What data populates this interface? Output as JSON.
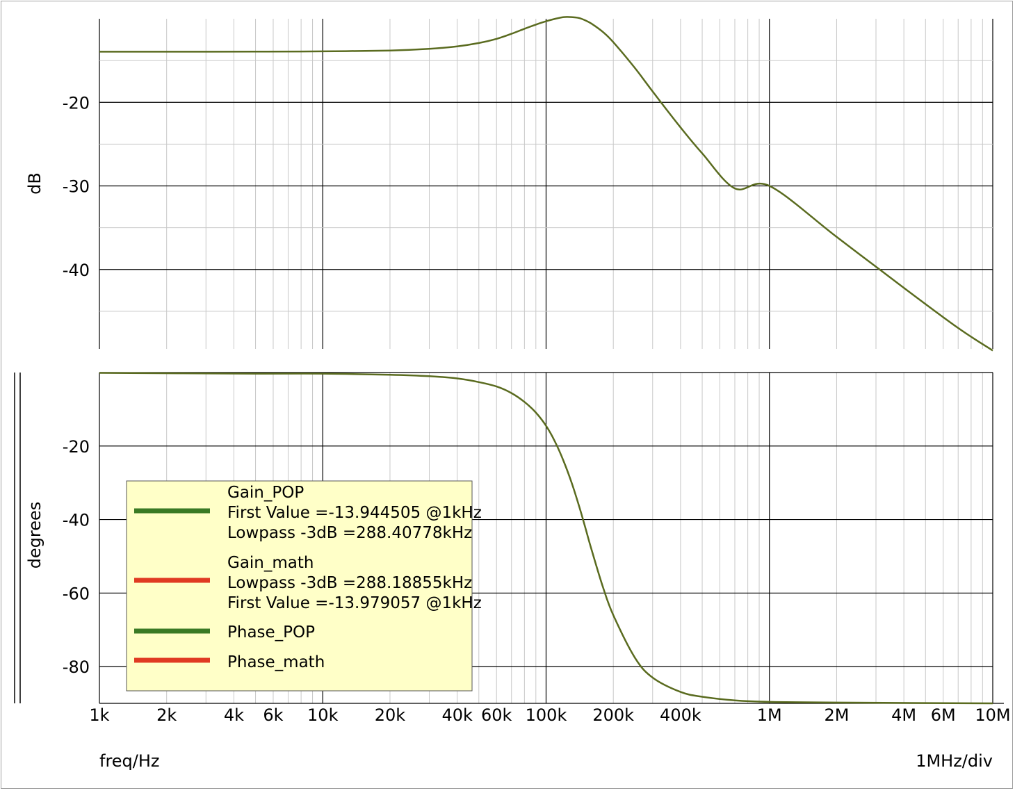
{
  "colors": {
    "trace": "#5a6b1f",
    "legend_bg": "#ffffc8",
    "legend_green": "#3a7a24",
    "legend_red": "#e03a22",
    "major_grid": "#000000",
    "minor_grid": "#c8c8c8"
  },
  "chart_data": [
    {
      "type": "line",
      "panel": "gain",
      "ylabel": "dB",
      "xscale": "log",
      "xlim": [
        1000,
        10000000
      ],
      "ylim": [
        -49.5,
        -10
      ],
      "yticks": [
        {
          "value": -20,
          "label": "-20"
        },
        {
          "value": -30,
          "label": "-30"
        },
        {
          "value": -40,
          "label": "-40"
        }
      ],
      "grid": true,
      "series": [
        {
          "x": [
            1000,
            2000,
            5000,
            10000,
            20000,
            30000,
            40000,
            50000,
            60000,
            70000,
            80000,
            90000,
            100000,
            110000,
            120000,
            130000,
            140000,
            150000,
            160000,
            180000,
            200000,
            250000,
            300000,
            400000,
            500000,
            700000,
            1000000,
            2000000,
            4000000,
            7000000,
            10000000
          ],
          "y": [
            -13.94,
            -13.94,
            -13.93,
            -13.9,
            -13.8,
            -13.6,
            -13.3,
            -12.9,
            -12.4,
            -11.8,
            -11.2,
            -10.7,
            -10.3,
            -10.0,
            -9.8,
            -9.8,
            -9.9,
            -10.2,
            -10.6,
            -11.6,
            -12.8,
            -15.9,
            -18.7,
            -23.0,
            -26.1,
            -30.3,
            -30.0,
            -36.1,
            -42.2,
            -47.0,
            -49.7
          ]
        }
      ]
    },
    {
      "type": "line",
      "panel": "phase",
      "ylabel": "degrees",
      "xscale": "log",
      "xlim": [
        1000,
        10000000
      ],
      "ylim": [
        -90,
        0
      ],
      "yticks": [
        {
          "value": -20,
          "label": "-20"
        },
        {
          "value": -40,
          "label": "-40"
        },
        {
          "value": -60,
          "label": "-60"
        },
        {
          "value": -80,
          "label": "-80"
        }
      ],
      "grid": true,
      "series": [
        {
          "x": [
            1000,
            5000,
            10000,
            20000,
            30000,
            40000,
            50000,
            60000,
            70000,
            80000,
            90000,
            100000,
            110000,
            120000,
            130000,
            140000,
            150000,
            160000,
            180000,
            200000,
            250000,
            300000,
            400000,
            500000,
            700000,
            1000000,
            2000000,
            10000000
          ],
          "y": [
            -0.1,
            -0.3,
            -0.3,
            -0.6,
            -1.0,
            -1.6,
            -2.6,
            -3.8,
            -5.6,
            -8.0,
            -10.9,
            -14.5,
            -19.0,
            -24.2,
            -29.9,
            -36.0,
            -42.3,
            -48.3,
            -58.5,
            -66.0,
            -77.6,
            -83.0,
            -86.9,
            -88.2,
            -89.2,
            -89.6,
            -89.8,
            -90.0
          ]
        }
      ]
    }
  ],
  "xaxis": {
    "ticks": [
      {
        "value": 1000,
        "label": "1k"
      },
      {
        "value": 2000,
        "label": "2k"
      },
      {
        "value": 4000,
        "label": "4k"
      },
      {
        "value": 6000,
        "label": "6k"
      },
      {
        "value": 10000,
        "label": "10k"
      },
      {
        "value": 20000,
        "label": "20k"
      },
      {
        "value": 40000,
        "label": "40k"
      },
      {
        "value": 60000,
        "label": "60k"
      },
      {
        "value": 100000,
        "label": "100k"
      },
      {
        "value": 200000,
        "label": "200k"
      },
      {
        "value": 400000,
        "label": "400k"
      },
      {
        "value": 1000000,
        "label": "1M"
      },
      {
        "value": 2000000,
        "label": "2M"
      },
      {
        "value": 4000000,
        "label": "4M"
      },
      {
        "value": 6000000,
        "label": "6M"
      },
      {
        "value": 10000000,
        "label": "10M"
      }
    ],
    "xlabel": "freq/Hz",
    "scale_text": "1MHz/div"
  },
  "legend": {
    "entries": [
      {
        "name": "Gain_POP",
        "color": "green",
        "lines": [
          "First Value =-13.944505 @1kHz",
          "Lowpass -3dB =288.40778kHz"
        ]
      },
      {
        "name": "Gain_math",
        "color": "red",
        "lines": [
          "Lowpass -3dB =288.18855kHz",
          "First Value =-13.979057 @1kHz"
        ]
      },
      {
        "name": "Phase_POP",
        "color": "green",
        "lines": []
      },
      {
        "name": "Phase_math",
        "color": "red",
        "lines": []
      }
    ]
  }
}
